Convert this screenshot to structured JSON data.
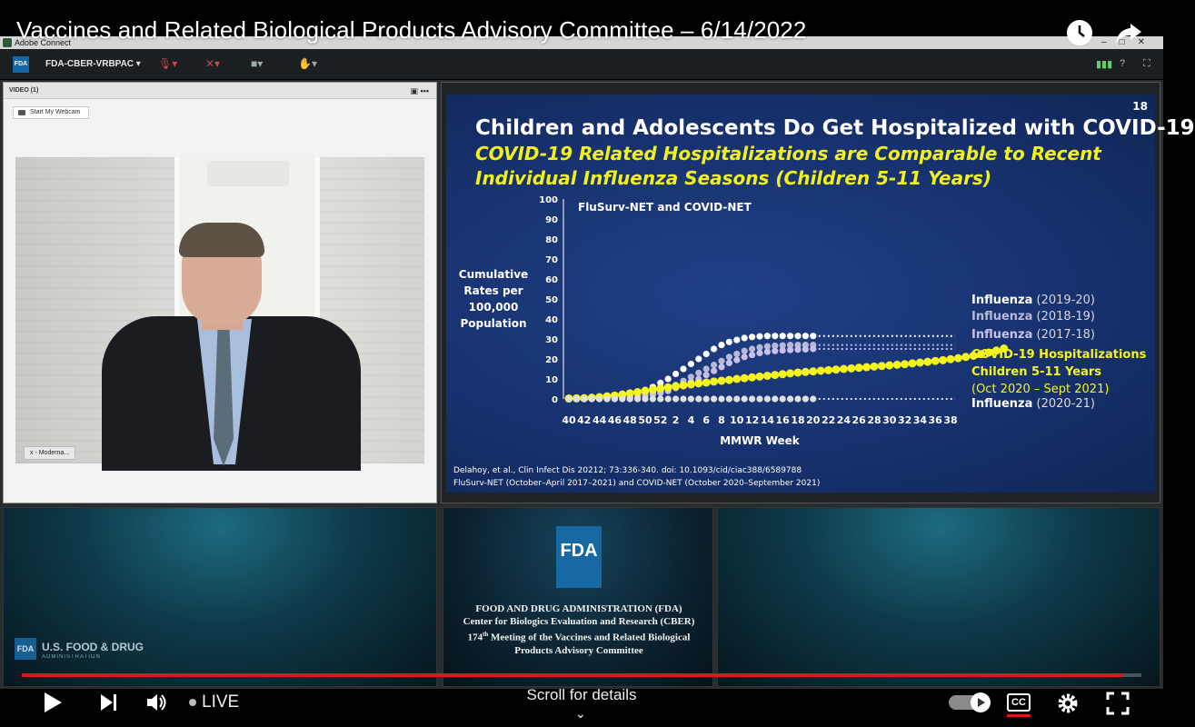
{
  "youtube": {
    "title": "Vaccines and Related Biological Products Advisory Committee – 6/14/2022",
    "live_label": "LIVE",
    "scroll_hint": "Scroll for details",
    "cc_label": "CC"
  },
  "app": {
    "window_title": "Adobe Connect",
    "room_name": "FDA-CBER-VRBPAC",
    "fda_badge": "FDA"
  },
  "video_pod": {
    "header": "VIDEO (1)",
    "webcam_button": "Start My Webcam",
    "participant_name": "x - Moderna..."
  },
  "slide": {
    "number": "18",
    "title": "Children and Adolescents Do Get Hospitalized with COVID-19",
    "subtitle_line1": "COVID-19 Related Hospitalizations are Comparable to Recent",
    "subtitle_line2": "Individual Influenza Seasons (Children 5-11 Years)",
    "footnote1": "Delahoy, et al., Clin Infect Dis 20212; 73:336-340. doi: 10.1093/cid/ciac388/6589788",
    "footnote2": "FluSurv-NET (October–April 2017–2021) and COVID-NET (October 2020–September 2021)"
  },
  "chart_data": {
    "type": "line",
    "title": "FluSurv-NET and COVID-NET",
    "xlabel": "MMWR Week",
    "ylabel": "Cumulative Rates per 100,000 Population",
    "ylabel_lines": [
      "Cumulative",
      "Rates per",
      "100,000",
      "Population"
    ],
    "ylim": [
      0,
      100
    ],
    "yticks": [
      0,
      10,
      20,
      30,
      40,
      50,
      60,
      70,
      80,
      90,
      100
    ],
    "x_tick_labels": [
      "40",
      "42",
      "44",
      "46",
      "48",
      "50",
      "52",
      "2",
      "4",
      "6",
      "8",
      "10",
      "12",
      "14",
      "16",
      "18",
      "20",
      "22",
      "24",
      "26",
      "28",
      "30",
      "32",
      "34",
      "36",
      "38"
    ],
    "grid": false,
    "series": [
      {
        "name": "Influenza (2019-20)",
        "color": "#ffffff",
        "values": [
          0,
          0,
          0,
          0,
          0,
          0.3,
          0.6,
          1,
          2,
          3,
          4.5,
          6,
          8,
          10,
          12.5,
          15,
          17.5,
          20,
          22.5,
          25,
          27,
          28.5,
          29.5,
          30.5,
          31,
          31.3,
          31.5,
          31.5,
          31.5,
          31.5,
          31.5,
          31.5,
          31.5
        ]
      },
      {
        "name": "Influenza (2018-19)",
        "color": "#b8b8d8",
        "values": [
          0,
          0,
          0,
          0,
          0,
          0,
          0.2,
          0.4,
          0.8,
          1.3,
          2,
          3,
          4,
          5.5,
          7,
          9,
          11,
          13,
          15,
          17,
          19,
          21,
          22.5,
          24,
          25,
          25.8,
          26.3,
          26.6,
          26.8,
          27,
          27,
          27,
          27
        ]
      },
      {
        "name": "Influenza (2017-18)",
        "color": "#c8c0ea",
        "values": [
          0,
          0,
          0,
          0,
          0,
          0,
          0.1,
          0.3,
          0.6,
          1,
          1.5,
          2.2,
          3,
          4,
          5.5,
          7,
          8.5,
          10,
          12,
          14,
          16,
          18,
          19.5,
          21,
          22,
          23,
          23.6,
          24,
          24.3,
          24.5,
          24.7,
          24.8,
          25
        ]
      },
      {
        "name": "COVID-19 Hospitalizations Children 5-11 Years (Oct 2020 – Sept 2021)",
        "color": "#f4f41e",
        "values": [
          0.2,
          0.3,
          0.4,
          0.6,
          0.9,
          1.3,
          1.7,
          2.2,
          2.8,
          3.4,
          4,
          4.6,
          5.2,
          5.8,
          6.3,
          6.8,
          7.3,
          7.8,
          8.2,
          8.7,
          9.1,
          9.5,
          10,
          10.4,
          10.8,
          11.2,
          11.6,
          12,
          12.4,
          12.8,
          13.2,
          13.5,
          13.8,
          14.1,
          14.4,
          14.7,
          15,
          15.3,
          15.6,
          15.9,
          16.2,
          16.5,
          16.8,
          17.1,
          17.4,
          17.8,
          18.2,
          18.6,
          19,
          19.4,
          19.9,
          20.4,
          21,
          21.6,
          22.4,
          23.2,
          24.2,
          25.2
        ]
      },
      {
        "name": "Influenza (2020-21)",
        "color": "#e0e0e0",
        "values": [
          0,
          0,
          0,
          0,
          0,
          0,
          0,
          0,
          0,
          0,
          0,
          0,
          0,
          0,
          0,
          0,
          0,
          0,
          0,
          0,
          0,
          0,
          0,
          0,
          0,
          0,
          0,
          0,
          0,
          0,
          0,
          0,
          0
        ]
      }
    ],
    "legend": [
      {
        "prefix": "Influenza",
        "suffix": "(2019-20)",
        "color": "#ffffff"
      },
      {
        "prefix": "Influenza",
        "suffix": "(2018-19)",
        "color": "#b8b8d8"
      },
      {
        "prefix": "Influenza",
        "suffix": "(2017-18)",
        "color": "#c8c0ea"
      },
      {
        "prefix": "COVID-19  Hospitalizations",
        "suffix": "",
        "color": "#f4f41e"
      },
      {
        "prefix": "Children 5-11 Years",
        "suffix": "",
        "color": "#f4f41e"
      },
      {
        "prefix": "(Oct 2020 – Sept 2021)",
        "suffix": "",
        "color": "#f4f41e"
      },
      {
        "prefix": "Influenza",
        "suffix": "(2020-21)",
        "color": "#ffffff"
      }
    ]
  },
  "bottom_left": {
    "logo": "FDA",
    "brand": "U.S. FOOD & DRUG",
    "brand_sub": "ADMINISTRATION"
  },
  "bottom_mid": {
    "logo": "FDA",
    "line1": "FOOD AND DRUG ADMINISTRATION (FDA)",
    "line2": "Center for Biologics Evaluation and Research (CBER)",
    "line3_num": "174",
    "line3_sup": "th",
    "line3_rest": " Meeting of the Vaccines and Related Biological",
    "line4": "Products Advisory Committee"
  },
  "player": {
    "progress_fraction": 0.983
  }
}
